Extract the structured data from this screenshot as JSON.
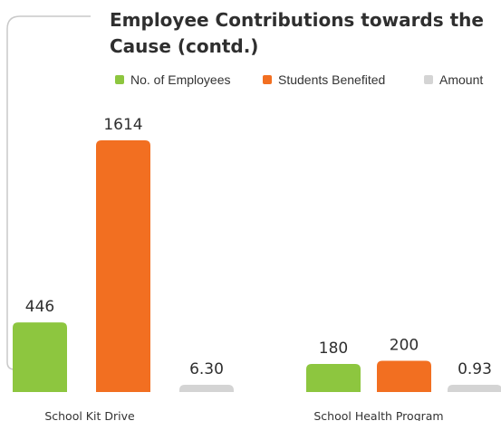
{
  "chart_data": {
    "type": "bar",
    "title": "Employee Contributions towards the Cause (contd.)",
    "categories": [
      "School Kit Drive",
      "School Health Program"
    ],
    "series": [
      {
        "name": "No. of Employees",
        "color": "#8dc63f",
        "values": [
          446,
          180
        ],
        "labels": [
          "446",
          "180"
        ]
      },
      {
        "name": "Students Benefited",
        "color": "#f26f21",
        "values": [
          1614,
          200
        ],
        "labels": [
          "1614",
          "200"
        ]
      },
      {
        "name": "Amount",
        "color": "#d4d4d4",
        "values": [
          6.3,
          0.93
        ],
        "labels": [
          "6.30",
          "0.93"
        ]
      }
    ],
    "ylim": [
      0,
      1614
    ],
    "legend_position": "top-right",
    "grid": false
  }
}
